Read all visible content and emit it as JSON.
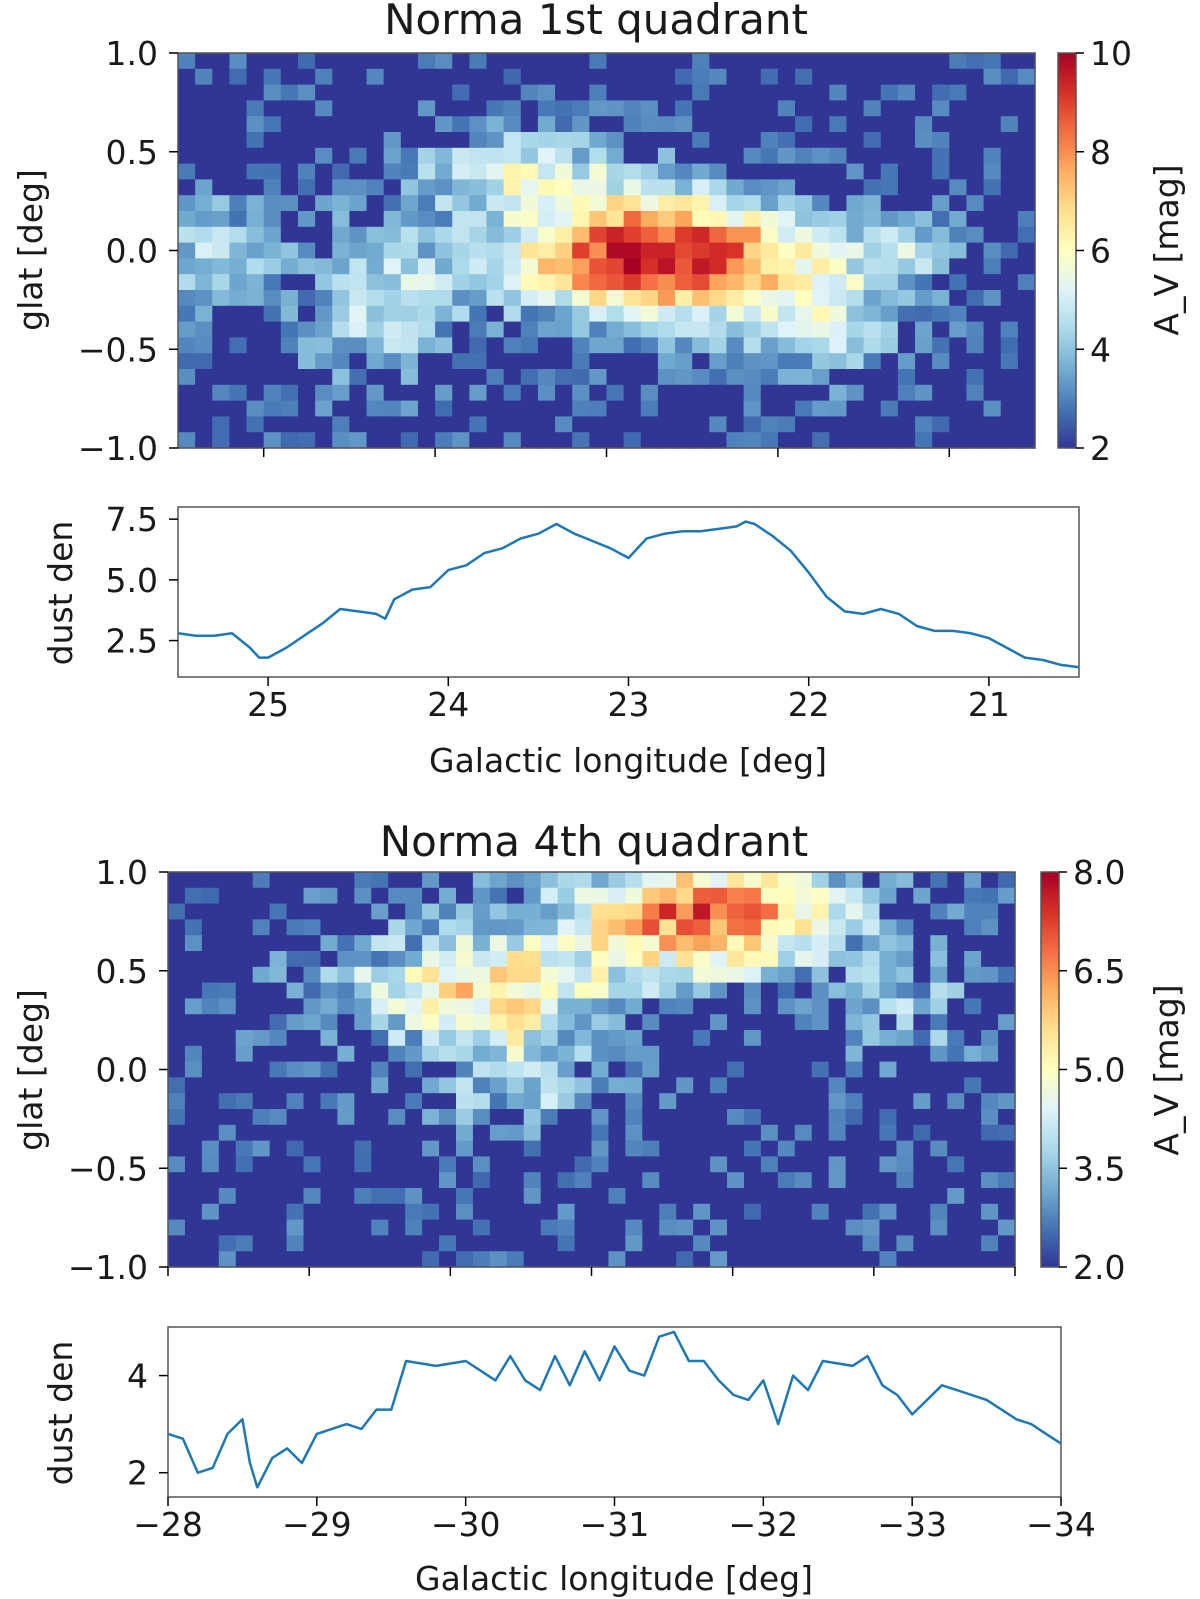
{
  "chart_data": [
    {
      "type": "heatmap",
      "title": "Norma 1st quadrant",
      "ylabel": "glat [deg]",
      "xlabel": "",
      "xlim": [
        25.5,
        20.5
      ],
      "ylim": [
        -1.0,
        1.0
      ],
      "yticks": [
        1.0,
        0.5,
        0.0,
        -0.5,
        -1.0
      ],
      "ytick_labels": [
        "1.0",
        "0.5",
        "0.0",
        "−0.5",
        "−1.0"
      ],
      "colorbar": {
        "label": "A_V [mag]",
        "range": [
          2,
          10
        ],
        "ticks": [
          10,
          8,
          6,
          4,
          2
        ],
        "tick_labels": [
          "10",
          "8",
          "6",
          "4",
          "2"
        ],
        "colormap": [
          "#313695",
          "#4575b4",
          "#74add1",
          "#abd9e9",
          "#e0f3f8",
          "#ffffbf",
          "#fee090",
          "#fdae61",
          "#f46d43",
          "#d73027",
          "#a50026"
        ]
      },
      "grid": false
    },
    {
      "type": "line",
      "ylabel": "dust den",
      "xlabel": "Galactic longitude [deg]",
      "xlim": [
        25.5,
        20.5
      ],
      "ylim": [
        1.0,
        8.0
      ],
      "xticks": [
        25,
        24,
        23,
        22,
        21
      ],
      "xtick_labels": [
        "25",
        "24",
        "23",
        "22",
        "21"
      ],
      "yticks": [
        7.5,
        5.0,
        2.5
      ],
      "ytick_labels": [
        "7.5",
        "5.0",
        "2.5"
      ],
      "series": [
        {
          "name": "dust den",
          "x": [
            25.5,
            25.4,
            25.3,
            25.2,
            25.1,
            25.05,
            25.0,
            24.9,
            24.8,
            24.7,
            24.6,
            24.5,
            24.4,
            24.35,
            24.3,
            24.2,
            24.1,
            24.0,
            23.9,
            23.8,
            23.7,
            23.6,
            23.5,
            23.4,
            23.3,
            23.2,
            23.1,
            23.0,
            22.9,
            22.8,
            22.7,
            22.6,
            22.5,
            22.4,
            22.35,
            22.3,
            22.2,
            22.1,
            22.0,
            21.9,
            21.8,
            21.7,
            21.6,
            21.5,
            21.4,
            21.3,
            21.2,
            21.1,
            21.0,
            20.9,
            20.8,
            20.7,
            20.6,
            20.5
          ],
          "y": [
            2.8,
            2.7,
            2.7,
            2.8,
            2.2,
            1.8,
            1.8,
            2.2,
            2.7,
            3.2,
            3.8,
            3.7,
            3.6,
            3.4,
            4.2,
            4.6,
            4.7,
            5.4,
            5.6,
            6.1,
            6.3,
            6.7,
            6.9,
            7.3,
            6.9,
            6.6,
            6.3,
            5.9,
            6.7,
            6.9,
            7.0,
            7.0,
            7.1,
            7.2,
            7.4,
            7.3,
            6.8,
            6.2,
            5.3,
            4.3,
            3.7,
            3.6,
            3.8,
            3.6,
            3.1,
            2.9,
            2.9,
            2.8,
            2.6,
            2.2,
            1.8,
            1.7,
            1.5,
            1.4
          ]
        }
      ],
      "grid": false
    },
    {
      "type": "heatmap",
      "title": "Norma 4th quadrant",
      "ylabel": "glat [deg]",
      "xlabel": "",
      "xlim": [
        -28,
        -34
      ],
      "ylim": [
        -1.0,
        1.0
      ],
      "yticks": [
        1.0,
        0.5,
        0.0,
        -0.5,
        -1.0
      ],
      "ytick_labels": [
        "1.0",
        "0.5",
        "0.0",
        "−0.5",
        "−1.0"
      ],
      "colorbar": {
        "label": "A_V [mag]",
        "range": [
          2.0,
          8.0
        ],
        "ticks": [
          8.0,
          6.5,
          5.0,
          3.5,
          2.0
        ],
        "tick_labels": [
          "8.0",
          "6.5",
          "5.0",
          "3.5",
          "2.0"
        ],
        "colormap": [
          "#313695",
          "#4575b4",
          "#74add1",
          "#abd9e9",
          "#e0f3f8",
          "#ffffbf",
          "#fee090",
          "#fdae61",
          "#f46d43",
          "#d73027",
          "#a50026"
        ]
      },
      "grid": false
    },
    {
      "type": "line",
      "ylabel": "dust den",
      "xlabel": "Galactic longitude [deg]",
      "xlim": [
        -28,
        -34
      ],
      "ylim": [
        1.5,
        5.0
      ],
      "xticks": [
        -28,
        -29,
        -30,
        -31,
        -32,
        -33,
        -34
      ],
      "xtick_labels": [
        "−28",
        "−29",
        "−30",
        "−31",
        "−32",
        "−33",
        "−34"
      ],
      "yticks": [
        4,
        2
      ],
      "ytick_labels": [
        "4",
        "2"
      ],
      "series": [
        {
          "name": "dust den",
          "x": [
            -28.0,
            -28.1,
            -28.2,
            -28.3,
            -28.4,
            -28.5,
            -28.55,
            -28.6,
            -28.7,
            -28.8,
            -28.9,
            -29.0,
            -29.2,
            -29.3,
            -29.4,
            -29.5,
            -29.6,
            -29.8,
            -30.0,
            -30.1,
            -30.2,
            -30.3,
            -30.4,
            -30.5,
            -30.6,
            -30.7,
            -30.8,
            -30.9,
            -31.0,
            -31.1,
            -31.2,
            -31.3,
            -31.4,
            -31.5,
            -31.6,
            -31.7,
            -31.8,
            -31.9,
            -32.0,
            -32.1,
            -32.2,
            -32.3,
            -32.4,
            -32.6,
            -32.7,
            -32.8,
            -32.9,
            -33.0,
            -33.1,
            -33.2,
            -33.3,
            -33.4,
            -33.5,
            -33.6,
            -33.7,
            -33.8,
            -33.9,
            -34.0
          ],
          "y": [
            2.8,
            2.7,
            2.0,
            2.1,
            2.8,
            3.1,
            2.2,
            1.7,
            2.3,
            2.5,
            2.2,
            2.8,
            3.0,
            2.9,
            3.3,
            3.3,
            4.3,
            4.2,
            4.3,
            4.1,
            3.9,
            4.4,
            3.9,
            3.7,
            4.4,
            3.8,
            4.5,
            3.9,
            4.6,
            4.1,
            4.0,
            4.8,
            4.9,
            4.3,
            4.3,
            3.9,
            3.6,
            3.5,
            3.9,
            3.0,
            4.0,
            3.7,
            4.3,
            4.2,
            4.4,
            3.8,
            3.6,
            3.2,
            3.5,
            3.8,
            3.7,
            3.6,
            3.5,
            3.3,
            3.1,
            3.0,
            2.8,
            2.6
          ]
        }
      ],
      "grid": false
    }
  ]
}
